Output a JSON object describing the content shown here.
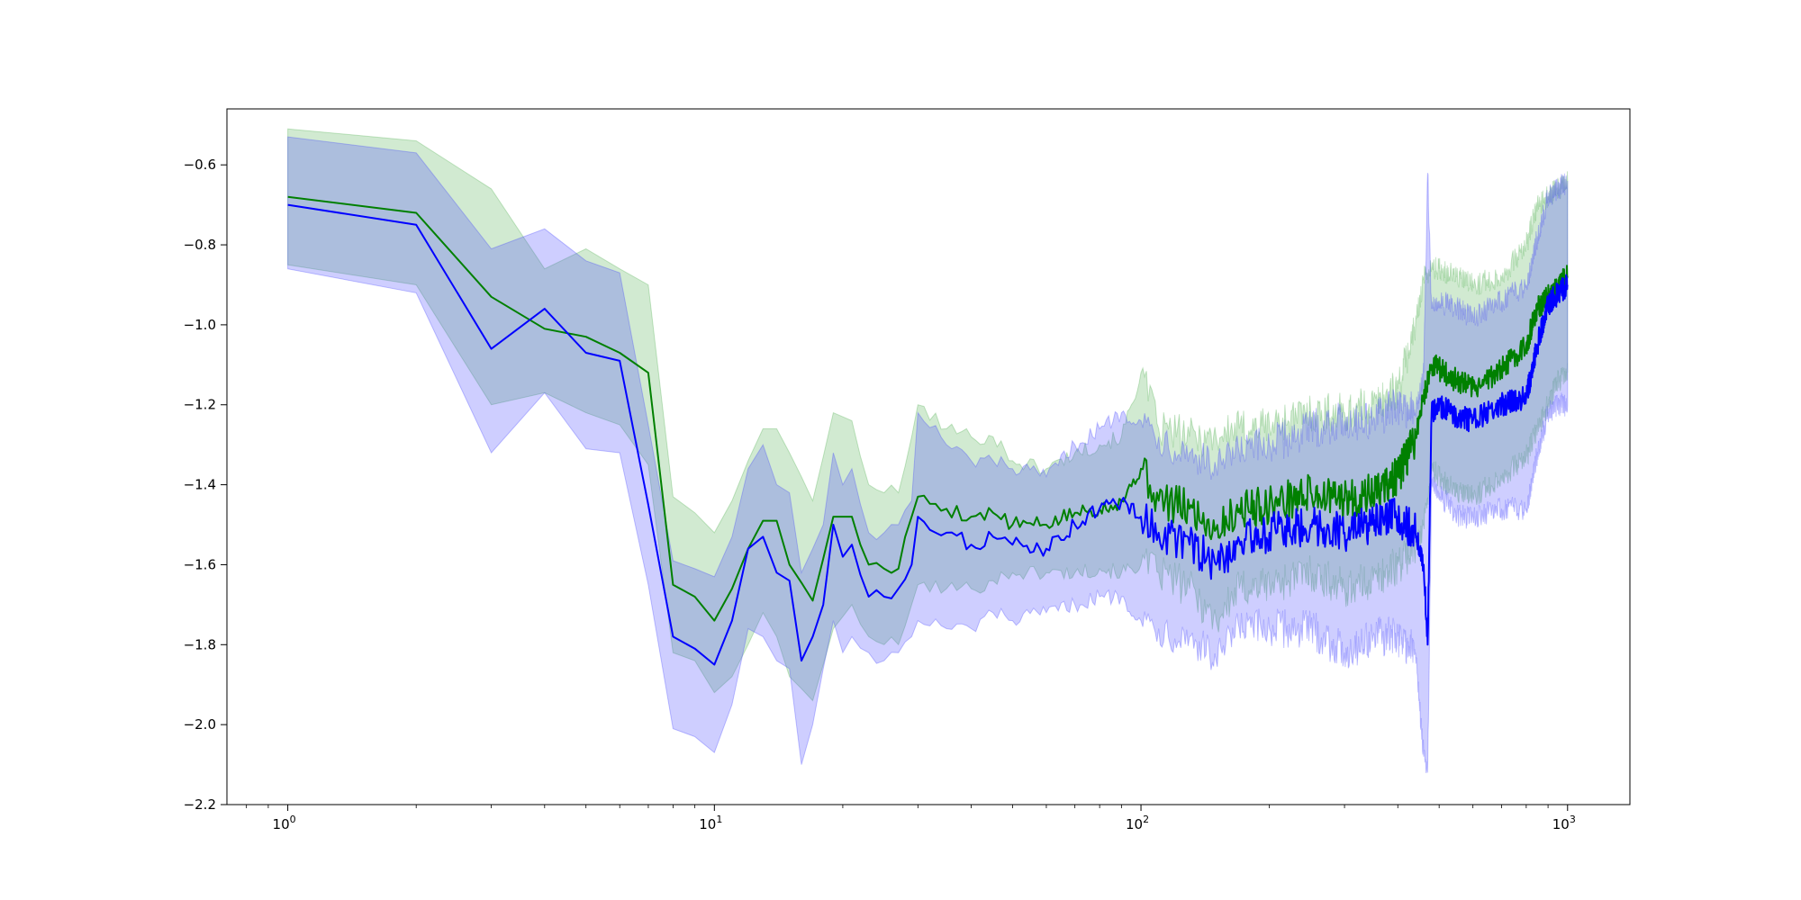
{
  "chart_data": {
    "type": "line",
    "title": "",
    "xlabel": "",
    "ylabel": "",
    "xscale": "log",
    "xlim": [
      0.72,
      1400
    ],
    "ylim": [
      -2.2,
      -0.46
    ],
    "grid": false,
    "legend": "none",
    "x_tick_labels": [
      {
        "value": 1,
        "base": "10",
        "exp": "0"
      },
      {
        "value": 10,
        "base": "10",
        "exp": "1"
      },
      {
        "value": 100,
        "base": "10",
        "exp": "2"
      },
      {
        "value": 1000,
        "base": "10",
        "exp": "3"
      }
    ],
    "y_tick_labels": [
      {
        "value": -0.6,
        "label": "−0.6"
      },
      {
        "value": -0.8,
        "label": "−0.8"
      },
      {
        "value": -1.0,
        "label": "−1.0"
      },
      {
        "value": -1.2,
        "label": "−1.2"
      },
      {
        "value": -1.4,
        "label": "−1.4"
      },
      {
        "value": -1.6,
        "label": "−1.6"
      },
      {
        "value": -1.8,
        "label": "−1.8"
      },
      {
        "value": -2.0,
        "label": "−2.0"
      },
      {
        "value": -2.2,
        "label": "−2.2"
      }
    ],
    "series": [
      {
        "color": "#008000",
        "band_color": "#2ca02c",
        "band_opacity": 0.22,
        "x": [
          1,
          2,
          3,
          4,
          5,
          6,
          7,
          8,
          9,
          10,
          11,
          12,
          13,
          14,
          15,
          17,
          19,
          21,
          23,
          25,
          27,
          29,
          30,
          35,
          40,
          45,
          50,
          60,
          70,
          80,
          90,
          100,
          110,
          130,
          150,
          170,
          200,
          250,
          300,
          350,
          400,
          440,
          460,
          480,
          500,
          550,
          600,
          700,
          800,
          850,
          900,
          950,
          1000
        ],
        "values": [
          -0.68,
          -0.72,
          -0.93,
          -1.01,
          -1.03,
          -1.07,
          -1.12,
          -1.65,
          -1.68,
          -1.74,
          -1.66,
          -1.56,
          -1.49,
          -1.49,
          -1.6,
          -1.69,
          -1.48,
          -1.48,
          -1.6,
          -1.61,
          -1.61,
          -1.48,
          -1.43,
          -1.46,
          -1.48,
          -1.47,
          -1.5,
          -1.5,
          -1.47,
          -1.46,
          -1.44,
          -1.36,
          -1.44,
          -1.46,
          -1.51,
          -1.46,
          -1.45,
          -1.42,
          -1.44,
          -1.42,
          -1.38,
          -1.28,
          -1.18,
          -1.1,
          -1.11,
          -1.14,
          -1.16,
          -1.11,
          -1.05,
          -0.96,
          -0.93,
          -0.9,
          -0.88
        ],
        "lower": [
          -0.85,
          -0.9,
          -1.2,
          -1.17,
          -1.22,
          -1.25,
          -1.35,
          -1.82,
          -1.84,
          -1.92,
          -1.88,
          -1.8,
          -1.72,
          -1.78,
          -1.88,
          -1.94,
          -1.76,
          -1.7,
          -1.78,
          -1.8,
          -1.8,
          -1.7,
          -1.65,
          -1.66,
          -1.66,
          -1.64,
          -1.62,
          -1.62,
          -1.62,
          -1.61,
          -1.62,
          -1.6,
          -1.62,
          -1.66,
          -1.74,
          -1.66,
          -1.65,
          -1.62,
          -1.66,
          -1.64,
          -1.6,
          -1.56,
          -1.5,
          -1.36,
          -1.38,
          -1.42,
          -1.43,
          -1.38,
          -1.33,
          -1.26,
          -1.2,
          -1.14,
          -1.12
        ],
        "upper": [
          -0.51,
          -0.54,
          -0.66,
          -0.86,
          -0.81,
          -0.86,
          -0.9,
          -1.43,
          -1.47,
          -1.52,
          -1.44,
          -1.34,
          -1.26,
          -1.26,
          -1.32,
          -1.44,
          -1.22,
          -1.24,
          -1.4,
          -1.42,
          -1.42,
          -1.28,
          -1.2,
          -1.26,
          -1.28,
          -1.28,
          -1.34,
          -1.36,
          -1.32,
          -1.3,
          -1.28,
          -1.12,
          -1.26,
          -1.28,
          -1.28,
          -1.26,
          -1.25,
          -1.22,
          -1.22,
          -1.2,
          -1.16,
          -1.0,
          -0.88,
          -0.86,
          -0.86,
          -0.88,
          -0.9,
          -0.88,
          -0.8,
          -0.7,
          -0.68,
          -0.66,
          -0.64
        ]
      },
      {
        "color": "#0000ff",
        "band_color": "#4040ff",
        "band_opacity": 0.26,
        "x": [
          1,
          2,
          3,
          4,
          5,
          6,
          7,
          8,
          9,
          10,
          11,
          12,
          13,
          14,
          15,
          16,
          17,
          18,
          19,
          20,
          21,
          23,
          25,
          27,
          29,
          30,
          35,
          40,
          45,
          50,
          60,
          70,
          80,
          90,
          100,
          110,
          130,
          150,
          170,
          200,
          250,
          300,
          350,
          400,
          440,
          460,
          470,
          480,
          500,
          550,
          600,
          700,
          800,
          850,
          900,
          950,
          1000
        ],
        "values": [
          -0.7,
          -0.75,
          -1.06,
          -0.96,
          -1.07,
          -1.09,
          -1.45,
          -1.78,
          -1.81,
          -1.85,
          -1.74,
          -1.56,
          -1.53,
          -1.62,
          -1.64,
          -1.84,
          -1.78,
          -1.7,
          -1.5,
          -1.58,
          -1.55,
          -1.68,
          -1.68,
          -1.66,
          -1.6,
          -1.48,
          -1.52,
          -1.55,
          -1.53,
          -1.55,
          -1.56,
          -1.5,
          -1.46,
          -1.44,
          -1.48,
          -1.52,
          -1.55,
          -1.6,
          -1.54,
          -1.52,
          -1.5,
          -1.52,
          -1.5,
          -1.48,
          -1.52,
          -1.6,
          -1.8,
          -1.22,
          -1.2,
          -1.23,
          -1.24,
          -1.2,
          -1.18,
          -1.05,
          -0.95,
          -0.92,
          -0.9
        ],
        "lower": [
          -0.86,
          -0.92,
          -1.32,
          -1.17,
          -1.31,
          -1.32,
          -1.65,
          -2.01,
          -2.03,
          -2.07,
          -1.95,
          -1.76,
          -1.78,
          -1.84,
          -1.86,
          -2.1,
          -2.0,
          -1.86,
          -1.74,
          -1.82,
          -1.78,
          -1.82,
          -1.84,
          -1.82,
          -1.78,
          -1.74,
          -1.76,
          -1.76,
          -1.72,
          -1.74,
          -1.72,
          -1.7,
          -1.68,
          -1.68,
          -1.74,
          -1.76,
          -1.78,
          -1.84,
          -1.76,
          -1.76,
          -1.76,
          -1.82,
          -1.78,
          -1.78,
          -1.82,
          -2.08,
          -2.12,
          -1.4,
          -1.42,
          -1.48,
          -1.48,
          -1.46,
          -1.46,
          -1.32,
          -1.22,
          -1.2,
          -1.2
        ],
        "upper": [
          -0.53,
          -0.57,
          -0.81,
          -0.76,
          -0.84,
          -0.87,
          -1.25,
          -1.59,
          -1.61,
          -1.63,
          -1.53,
          -1.36,
          -1.3,
          -1.4,
          -1.42,
          -1.62,
          -1.56,
          -1.5,
          -1.32,
          -1.4,
          -1.36,
          -1.52,
          -1.52,
          -1.5,
          -1.44,
          -1.22,
          -1.3,
          -1.34,
          -1.34,
          -1.36,
          -1.38,
          -1.3,
          -1.26,
          -1.22,
          -1.24,
          -1.28,
          -1.32,
          -1.36,
          -1.32,
          -1.3,
          -1.26,
          -1.24,
          -1.24,
          -1.2,
          -1.22,
          -1.12,
          -0.62,
          -0.96,
          -0.94,
          -0.96,
          -0.98,
          -0.94,
          -0.9,
          -0.78,
          -0.68,
          -0.66,
          -0.64
        ]
      }
    ]
  }
}
